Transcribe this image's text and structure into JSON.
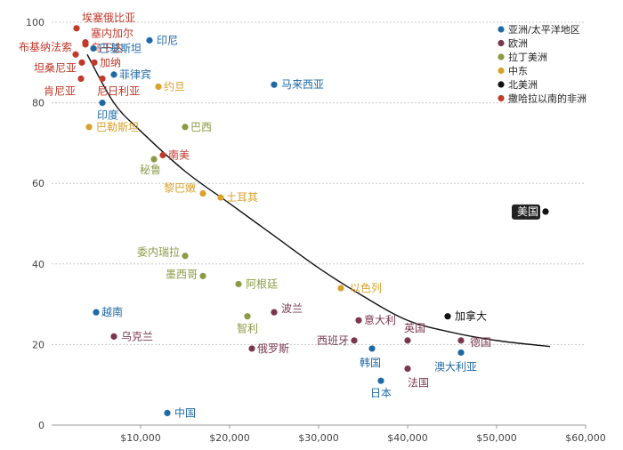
{
  "chart_data": {
    "type": "scatter",
    "x": {
      "min": 0,
      "max": 60000,
      "ticks": [
        {
          "value": 10000,
          "label": "$10,000"
        },
        {
          "value": 20000,
          "label": "$20,000"
        },
        {
          "value": 30000,
          "label": "$30,000"
        },
        {
          "value": 40000,
          "label": "$40,000"
        },
        {
          "value": 50000,
          "label": "$50,000"
        },
        {
          "value": 60000,
          "label": "$60,000"
        }
      ]
    },
    "y": {
      "min": 0,
      "max": 100,
      "ticks": [
        {
          "value": 0,
          "label": "0"
        },
        {
          "value": 20,
          "label": "20"
        },
        {
          "value": 40,
          "label": "40"
        },
        {
          "value": 60,
          "label": "60"
        },
        {
          "value": 80,
          "label": "80"
        },
        {
          "value": 100,
          "label": "100"
        }
      ]
    },
    "grid": true,
    "legend_position": "top-right",
    "legend": [
      {
        "key": "asia",
        "label": "亚洲/太平洋地区",
        "color": "#1f6aa5"
      },
      {
        "key": "europe",
        "label": "欧洲",
        "color": "#7a3850"
      },
      {
        "key": "latam",
        "label": "拉丁美洲",
        "color": "#8a9a45"
      },
      {
        "key": "mideast",
        "label": "中东",
        "color": "#d9a22f"
      },
      {
        "key": "namerica",
        "label": "北美洲",
        "color": "#111111"
      },
      {
        "key": "africa",
        "label": "撒哈拉以南的非洲",
        "color": "#c0392b"
      }
    ],
    "trend_curve": [
      [
        4000,
        92
      ],
      [
        7000,
        80
      ],
      [
        10000,
        73
      ],
      [
        15000,
        63
      ],
      [
        20000,
        55
      ],
      [
        25000,
        47
      ],
      [
        30000,
        39
      ],
      [
        35000,
        32
      ],
      [
        40000,
        26
      ],
      [
        45000,
        23
      ],
      [
        50000,
        21
      ],
      [
        56000,
        19.5
      ]
    ],
    "points": [
      {
        "label": "埃塞俄比亚",
        "x": 2800,
        "y": 98.5,
        "region": "africa"
      },
      {
        "label": "塞内加尔",
        "x": 3800,
        "y": 95,
        "region": "africa"
      },
      {
        "label": "布基纳法索",
        "x": 2700,
        "y": 92,
        "region": "africa"
      },
      {
        "label": "乌干达",
        "x": 3800,
        "y": 94.5,
        "region": "africa"
      },
      {
        "label": "巴基斯坦",
        "x": 4700,
        "y": 93.5,
        "region": "asia"
      },
      {
        "label": "印尼",
        "x": 11000,
        "y": 95.5,
        "region": "asia"
      },
      {
        "label": "坦桑尼亚",
        "x": 3400,
        "y": 90,
        "region": "africa"
      },
      {
        "label": "加纳",
        "x": 4800,
        "y": 90,
        "region": "africa"
      },
      {
        "label": "菲律宾",
        "x": 7000,
        "y": 87,
        "region": "asia"
      },
      {
        "label": "肯尼亚",
        "x": 3300,
        "y": 86,
        "region": "africa"
      },
      {
        "label": "尼日利亚",
        "x": 5700,
        "y": 86,
        "region": "africa"
      },
      {
        "label": "约旦",
        "x": 12000,
        "y": 84,
        "region": "mideast"
      },
      {
        "label": "马来西亚",
        "x": 25000,
        "y": 84.5,
        "region": "asia"
      },
      {
        "label": "印度",
        "x": 5700,
        "y": 80,
        "region": "asia"
      },
      {
        "label": "巴勒斯坦",
        "x": 4200,
        "y": 74,
        "region": "mideast"
      },
      {
        "label": "巴西",
        "x": 15000,
        "y": 74,
        "region": "latam"
      },
      {
        "label": "南美",
        "x": 12500,
        "y": 67,
        "region": "africa"
      },
      {
        "label": "秘鲁",
        "x": 11500,
        "y": 66,
        "region": "latam"
      },
      {
        "label": "黎巴嫩",
        "x": 17000,
        "y": 57.5,
        "region": "mideast"
      },
      {
        "label": "土耳其",
        "x": 19000,
        "y": 56.5,
        "region": "mideast"
      },
      {
        "label": "美国",
        "x": 55500,
        "y": 53,
        "region": "namerica"
      },
      {
        "label": "委内瑞拉",
        "x": 15000,
        "y": 42,
        "region": "latam"
      },
      {
        "label": "墨西哥",
        "x": 17000,
        "y": 37,
        "region": "latam"
      },
      {
        "label": "阿根廷",
        "x": 21000,
        "y": 35,
        "region": "latam"
      },
      {
        "label": "以色列",
        "x": 32500,
        "y": 34,
        "region": "mideast"
      },
      {
        "label": "越南",
        "x": 5000,
        "y": 28,
        "region": "asia"
      },
      {
        "label": "波兰",
        "x": 25000,
        "y": 28,
        "region": "europe"
      },
      {
        "label": "智利",
        "x": 22000,
        "y": 27,
        "region": "latam"
      },
      {
        "label": "加拿大",
        "x": 44500,
        "y": 27,
        "region": "namerica"
      },
      {
        "label": "意大利",
        "x": 34500,
        "y": 26,
        "region": "europe"
      },
      {
        "label": "乌克兰",
        "x": 7000,
        "y": 22,
        "region": "europe"
      },
      {
        "label": "西班牙",
        "x": 34000,
        "y": 21,
        "region": "europe"
      },
      {
        "label": "英国",
        "x": 40000,
        "y": 21,
        "region": "europe"
      },
      {
        "label": "德国",
        "x": 46000,
        "y": 21,
        "region": "europe"
      },
      {
        "label": "俄罗斯",
        "x": 22500,
        "y": 19,
        "region": "europe"
      },
      {
        "label": "韩国",
        "x": 36000,
        "y": 19,
        "region": "asia"
      },
      {
        "label": "澳大利亚",
        "x": 46000,
        "y": 18,
        "region": "asia"
      },
      {
        "label": "法国",
        "x": 40000,
        "y": 14,
        "region": "europe"
      },
      {
        "label": "日本",
        "x": 37000,
        "y": 11,
        "region": "asia"
      },
      {
        "label": "中国",
        "x": 13000,
        "y": 3,
        "region": "asia"
      }
    ]
  }
}
